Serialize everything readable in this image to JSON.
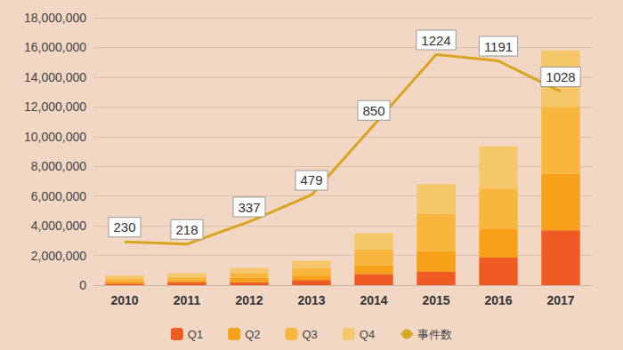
{
  "chart_data": {
    "type": "bar",
    "stacked": true,
    "grid": true,
    "legend": "bottom",
    "tick_labels": "y",
    "categories": [
      "2010",
      "2011",
      "2012",
      "2013",
      "2014",
      "2015",
      "2016",
      "2017"
    ],
    "ylim": [
      0,
      18000000
    ],
    "yticks": [
      0,
      {
        "value": 2000000,
        "label": "2,000,000"
      },
      {
        "value": 4000000,
        "label": "4,000,000"
      },
      {
        "value": 6000000,
        "label": "6,000,000"
      },
      {
        "value": 8000000,
        "label": "8,000,000"
      },
      {
        "value": 10000000,
        "label": "10,000,000"
      },
      {
        "value": 12000000,
        "label": "12,000,000"
      },
      {
        "value": 14000000,
        "label": "14,000,000"
      },
      {
        "value": 16000000,
        "label": "16,000,000"
      },
      {
        "value": 18000000,
        "label": "18,000,000"
      }
    ],
    "y2lim": [
      0,
      1420
    ],
    "series": [
      {
        "name": "Q1",
        "color": "#f05a23",
        "values": [
          100000,
          200000,
          200000,
          350000,
          750000,
          900000,
          1850000,
          3700000
        ]
      },
      {
        "name": "Q2",
        "color": "#f7a019",
        "values": [
          150000,
          150000,
          300000,
          300000,
          600000,
          1400000,
          1950000,
          3800000
        ]
      },
      {
        "name": "Q3",
        "color": "#f8b73c",
        "values": [
          200000,
          200000,
          300000,
          500000,
          1050000,
          2500000,
          2700000,
          4500000
        ]
      },
      {
        "name": "Q4",
        "color": "#f5c66a",
        "values": [
          200000,
          250000,
          350000,
          500000,
          1100000,
          2000000,
          2850000,
          3800000
        ]
      },
      {
        "name": "事件数",
        "type": "line",
        "axis": "y2",
        "color": "#d9a521",
        "marker": "none",
        "data_labels": true,
        "values": [
          230,
          218,
          337,
          479,
          850,
          1224,
          1191,
          1028
        ]
      }
    ]
  }
}
